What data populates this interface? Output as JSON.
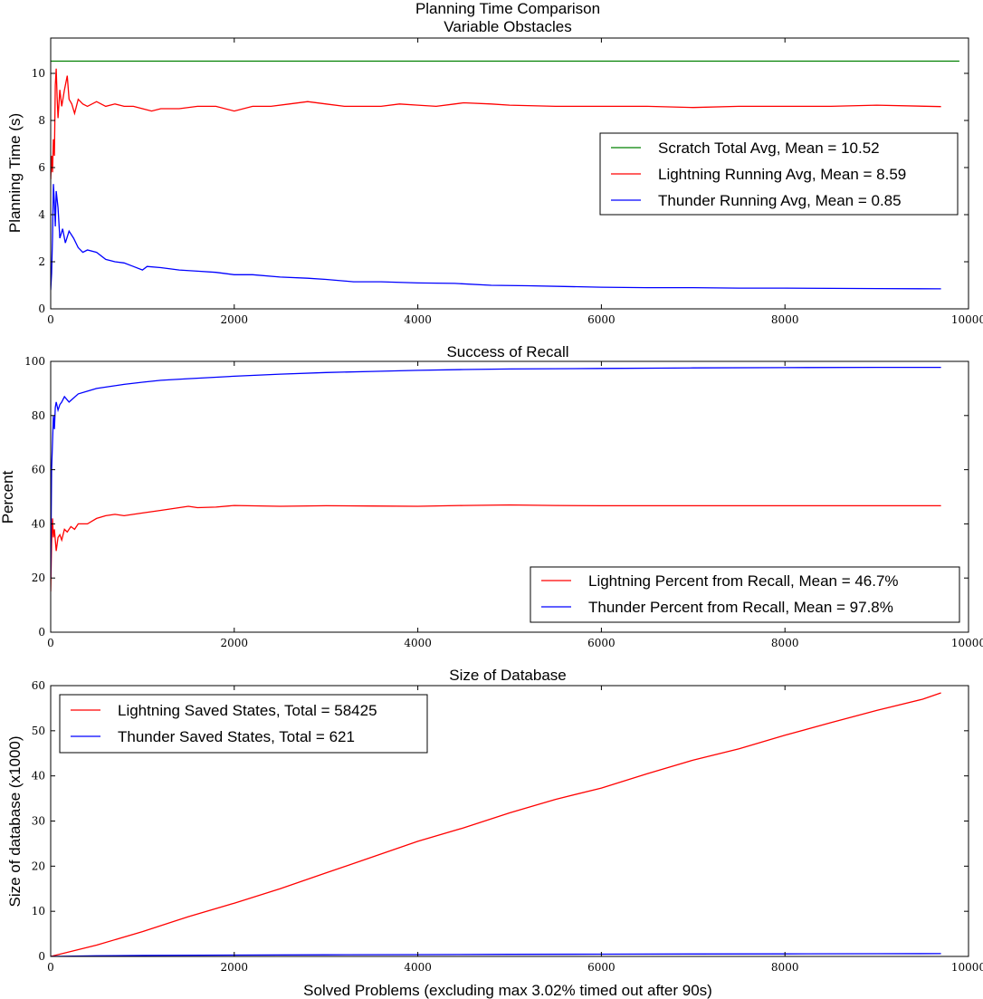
{
  "figure": {
    "xlabel": "Solved Problems (excluding max 3.02% timed out after 90s)"
  },
  "chart_data": [
    {
      "type": "line",
      "title": "Planning Time Comparison",
      "subtitle": "Variable Obstacles",
      "xlabel": "",
      "ylabel": "Planning Time (s)",
      "xlim": [
        0,
        10000
      ],
      "ylim": [
        0,
        11.5
      ],
      "xticks": [
        0,
        2000,
        4000,
        6000,
        8000,
        10000
      ],
      "yticks": [
        0,
        2,
        4,
        6,
        8,
        10
      ],
      "grid": false,
      "legend_position": "center-right",
      "series": [
        {
          "name": "Scratch Total Avg, Mean = 10.52",
          "color": "#008000",
          "x": [
            0,
            9900
          ],
          "y": [
            10.52,
            10.52
          ]
        },
        {
          "name": "Lightning Running Avg, Mean = 8.59",
          "color": "#ff0000",
          "x": [
            0,
            10,
            20,
            30,
            40,
            50,
            60,
            70,
            80,
            100,
            120,
            150,
            180,
            200,
            230,
            260,
            300,
            350,
            400,
            500,
            600,
            700,
            800,
            900,
            1000,
            1100,
            1200,
            1400,
            1600,
            1800,
            2000,
            2200,
            2400,
            2600,
            2800,
            3000,
            3200,
            3400,
            3600,
            3800,
            4000,
            4200,
            4400,
            4500,
            4800,
            5000,
            5500,
            6000,
            6500,
            7000,
            7500,
            8000,
            8500,
            9000,
            9700
          ],
          "y": [
            5.5,
            6.5,
            5.8,
            7.2,
            6.5,
            9.5,
            10.2,
            9.0,
            8.1,
            9.3,
            8.6,
            9.3,
            9.9,
            8.9,
            8.7,
            8.3,
            8.9,
            8.7,
            8.6,
            8.8,
            8.6,
            8.7,
            8.6,
            8.6,
            8.5,
            8.4,
            8.5,
            8.5,
            8.6,
            8.6,
            8.4,
            8.6,
            8.6,
            8.7,
            8.8,
            8.7,
            8.6,
            8.6,
            8.6,
            8.7,
            8.65,
            8.6,
            8.7,
            8.75,
            8.7,
            8.65,
            8.6,
            8.6,
            8.6,
            8.55,
            8.6,
            8.6,
            8.6,
            8.65,
            8.59
          ]
        },
        {
          "name": "Thunder Running Avg, Mean = 0.85",
          "color": "#0000ff",
          "x": [
            0,
            10,
            20,
            30,
            40,
            50,
            60,
            80,
            100,
            130,
            160,
            200,
            250,
            300,
            350,
            400,
            500,
            600,
            700,
            800,
            900,
            1000,
            1050,
            1200,
            1400,
            1600,
            1800,
            2000,
            2200,
            2500,
            2800,
            3000,
            3300,
            3600,
            4000,
            4400,
            4800,
            5200,
            5600,
            6000,
            6500,
            7000,
            7500,
            8000,
            8500,
            9000,
            9700
          ],
          "y": [
            0.8,
            1.5,
            3.0,
            5.3,
            4.5,
            3.5,
            5.0,
            4.3,
            3.0,
            3.4,
            2.8,
            3.3,
            3.0,
            2.6,
            2.4,
            2.5,
            2.4,
            2.1,
            2.0,
            1.95,
            1.8,
            1.65,
            1.8,
            1.75,
            1.65,
            1.6,
            1.55,
            1.45,
            1.45,
            1.35,
            1.3,
            1.25,
            1.15,
            1.15,
            1.1,
            1.08,
            1.0,
            0.98,
            0.95,
            0.92,
            0.9,
            0.9,
            0.88,
            0.88,
            0.87,
            0.86,
            0.85
          ]
        }
      ]
    },
    {
      "type": "line",
      "title": "Success of Recall",
      "xlabel": "",
      "ylabel": "Percent",
      "xlim": [
        0,
        10000
      ],
      "ylim": [
        0,
        100
      ],
      "xticks": [
        0,
        2000,
        4000,
        6000,
        8000,
        10000
      ],
      "yticks": [
        0,
        20,
        40,
        60,
        80,
        100
      ],
      "grid": false,
      "legend_position": "lower-right",
      "series": [
        {
          "name": "Lightning Percent from Recall, Mean = 46.7%",
          "color": "#ff0000",
          "x": [
            0,
            10,
            20,
            30,
            40,
            60,
            80,
            100,
            120,
            150,
            180,
            220,
            260,
            300,
            400,
            500,
            600,
            700,
            800,
            1000,
            1200,
            1400,
            1500,
            1600,
            1800,
            2000,
            2500,
            3000,
            3500,
            4000,
            4500,
            5000,
            5500,
            6000,
            6500,
            7000,
            8000,
            9000,
            9700
          ],
          "y": [
            15,
            33,
            42,
            35,
            38,
            30,
            35,
            36,
            34,
            38,
            37,
            39,
            38,
            40,
            40,
            42,
            43,
            43.5,
            43,
            44,
            45,
            46,
            46.5,
            46,
            46.2,
            46.8,
            46.5,
            46.7,
            46.6,
            46.5,
            46.8,
            47,
            46.8,
            46.7,
            46.7,
            46.7,
            46.7,
            46.7,
            46.7
          ]
        },
        {
          "name": "Thunder Percent from Recall, Mean = 97.8%",
          "color": "#0000ff",
          "x": [
            0,
            10,
            20,
            30,
            40,
            50,
            60,
            80,
            100,
            120,
            150,
            200,
            300,
            400,
            500,
            600,
            700,
            800,
            1000,
            1200,
            1500,
            2000,
            2500,
            3000,
            3500,
            4000,
            4500,
            5000,
            6000,
            7000,
            8000,
            9000,
            9700
          ],
          "y": [
            20,
            60,
            70,
            80,
            75,
            83,
            85,
            82,
            84,
            85,
            87,
            85,
            88,
            89,
            90,
            90.5,
            91,
            91.5,
            92.3,
            93,
            93.6,
            94.5,
            95.3,
            95.9,
            96.3,
            96.7,
            97,
            97.2,
            97.4,
            97.6,
            97.7,
            97.8,
            97.8
          ]
        }
      ]
    },
    {
      "type": "line",
      "title": "Size of Database",
      "xlabel": "Solved Problems (excluding max 3.02% timed out after 90s)",
      "ylabel": "Size of database (x1000)",
      "xlim": [
        0,
        10000
      ],
      "ylim": [
        0,
        60
      ],
      "xticks": [
        0,
        2000,
        4000,
        6000,
        8000,
        10000
      ],
      "yticks": [
        0,
        10,
        20,
        30,
        40,
        50,
        60
      ],
      "grid": false,
      "legend_position": "upper-left",
      "series": [
        {
          "name": "Lightning Saved States, Total = 58425",
          "color": "#ff0000",
          "x": [
            0,
            500,
            1000,
            1500,
            2000,
            2500,
            3000,
            3500,
            4000,
            4500,
            5000,
            5500,
            6000,
            6500,
            7000,
            7500,
            8000,
            8500,
            9000,
            9500,
            9700
          ],
          "y": [
            0,
            2.5,
            5.5,
            8.8,
            11.8,
            15.0,
            18.5,
            22.0,
            25.5,
            28.5,
            31.8,
            34.8,
            37.3,
            40.5,
            43.5,
            46.0,
            49.0,
            51.8,
            54.5,
            57.0,
            58.4
          ]
        },
        {
          "name": "Thunder Saved States, Total = 621",
          "color": "#0000ff",
          "x": [
            0,
            500,
            1000,
            2000,
            3000,
            4000,
            5000,
            6000,
            7000,
            8000,
            9000,
            9700
          ],
          "y": [
            0,
            0.15,
            0.22,
            0.3,
            0.36,
            0.41,
            0.46,
            0.5,
            0.54,
            0.57,
            0.6,
            0.62
          ]
        }
      ]
    }
  ]
}
